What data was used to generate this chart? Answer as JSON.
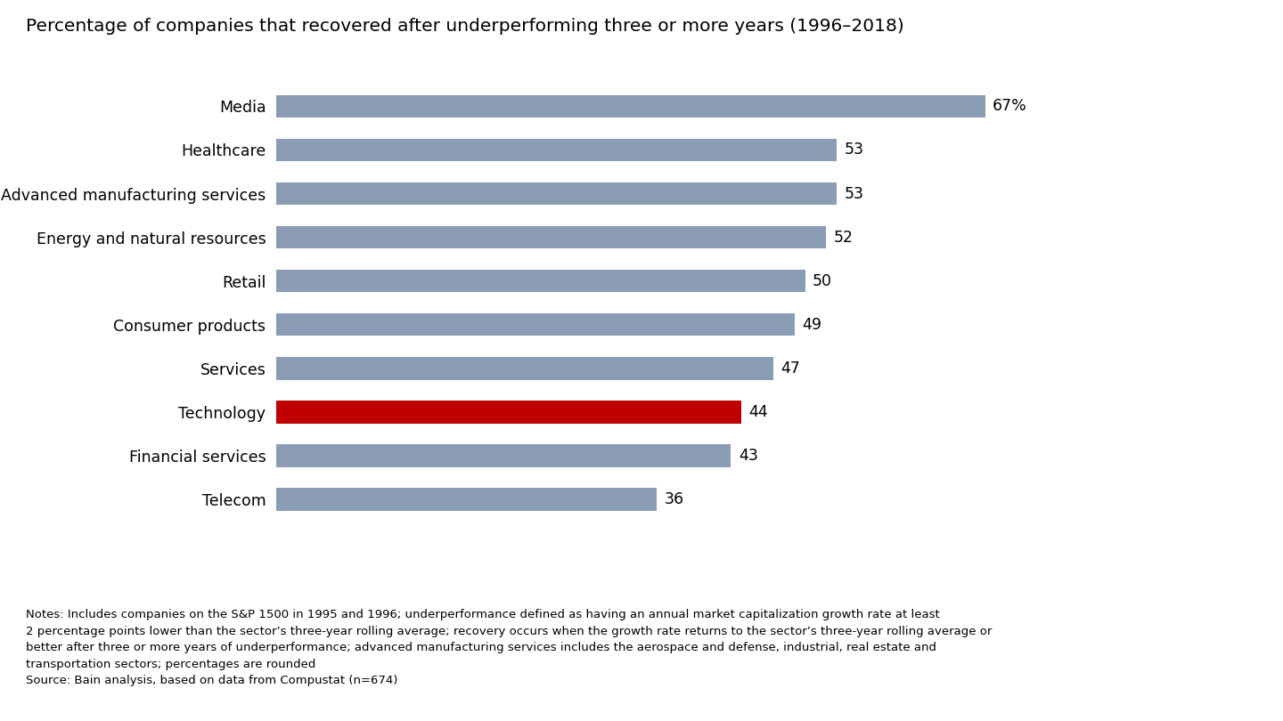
{
  "title": "Percentage of companies that recovered after underperforming three or more years (1996–2018)",
  "categories": [
    "Media",
    "Healthcare",
    "Advanced manufacturing services",
    "Energy and natural resources",
    "Retail",
    "Consumer products",
    "Services",
    "Technology",
    "Financial services",
    "Telecom"
  ],
  "values": [
    67,
    53,
    53,
    52,
    50,
    49,
    47,
    44,
    43,
    36
  ],
  "bar_colors": [
    "#8a9db5",
    "#8a9db5",
    "#8a9db5",
    "#8a9db5",
    "#8a9db5",
    "#8a9db5",
    "#8a9db5",
    "#c00000",
    "#8a9db5",
    "#8a9db5"
  ],
  "value_labels": [
    "67%",
    "53",
    "53",
    "52",
    "50",
    "49",
    "47",
    "44",
    "43",
    "36"
  ],
  "xlim": [
    0,
    80
  ],
  "bar_height": 0.52,
  "title_fontsize": 14.5,
  "label_fontsize": 12.5,
  "value_fontsize": 12.5,
  "footnote_fontsize": 9.5,
  "background_color": "#ffffff",
  "footnote": "Notes: Includes companies on the S&P 1500 in 1995 and 1996; underperformance defined as having an annual market capitalization growth rate at least\n2 percentage points lower than the sector’s three-year rolling average; recovery occurs when the growth rate returns to the sector’s three-year rolling average or\nbetter after three or more years of underperformance; advanced manufacturing services includes the aerospace and defense, industrial, real estate and\ntransportation sectors; percentages are rounded\nSource: Bain analysis, based on data from Compustat (n=674)"
}
